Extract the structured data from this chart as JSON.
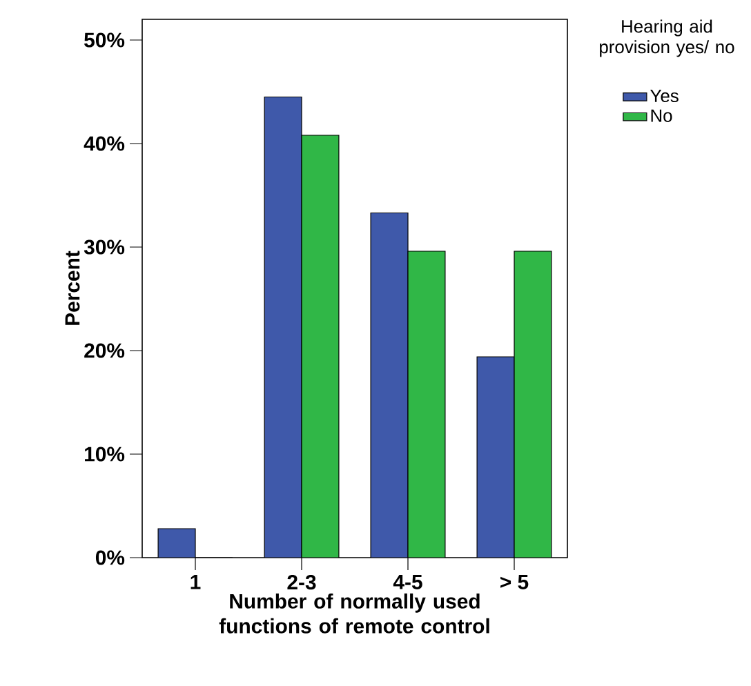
{
  "chart_data": {
    "type": "bar",
    "xlabel": "Number of normally used functions of remote control",
    "ylabel": "Percent",
    "legend_title": "Hearing aid provision yes/ no",
    "legend": "right",
    "categories": [
      "1",
      "2-3",
      "4-5",
      "> 5"
    ],
    "series": [
      {
        "name": "Yes",
        "color": "#3f59aa",
        "values": [
          2.8,
          44.5,
          33.3,
          19.4
        ]
      },
      {
        "name": "No",
        "color": "#30b747",
        "values": [
          0,
          40.8,
          29.6,
          29.6
        ]
      }
    ],
    "ylim": [
      0,
      52
    ],
    "yticks": [
      {
        "value": 0,
        "label": "0%"
      },
      {
        "value": 10,
        "label": "10%"
      },
      {
        "value": 20,
        "label": "20%"
      },
      {
        "value": 30,
        "label": "30%"
      },
      {
        "value": 40,
        "label": "40%"
      },
      {
        "value": 50,
        "label": "50%"
      }
    ]
  }
}
